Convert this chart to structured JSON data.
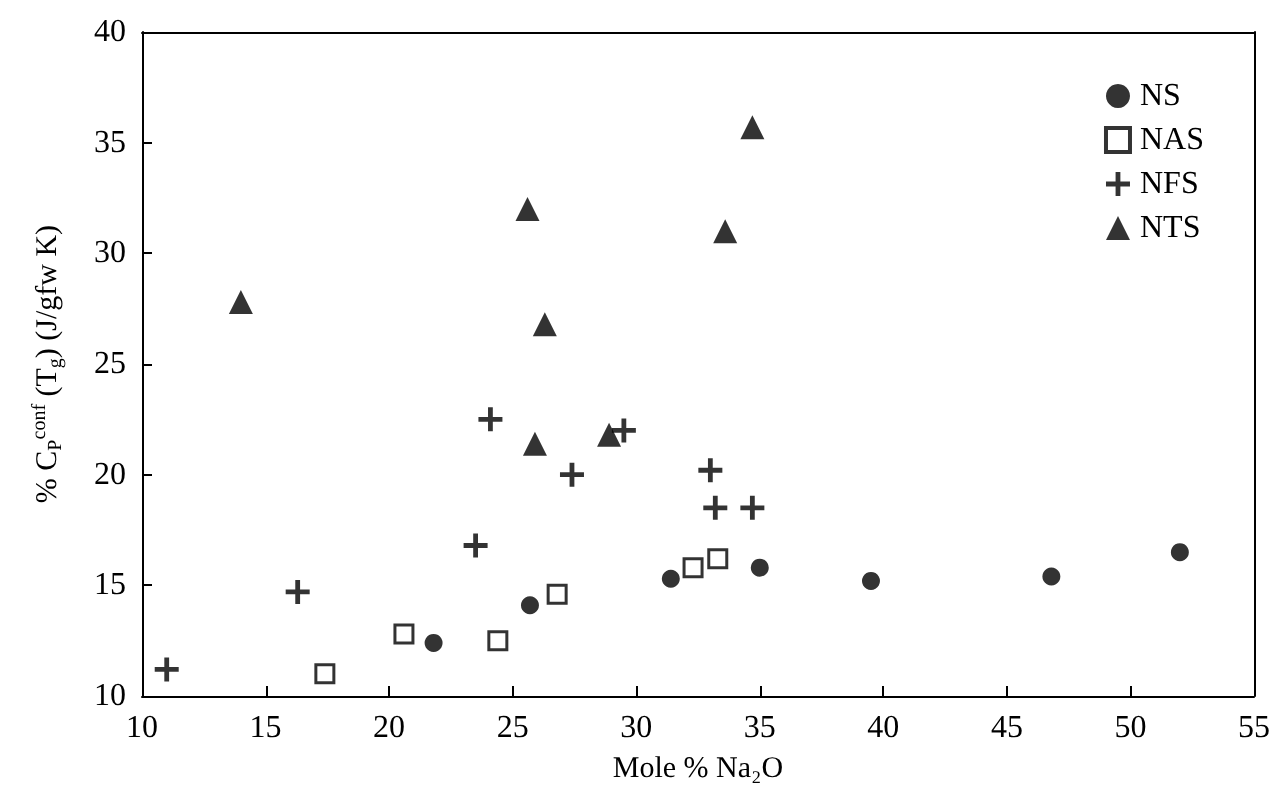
{
  "chart_data": {
    "type": "scatter",
    "xlabel": "Mole % Na₂O",
    "ylabel": "% C$_{P}$$^{conf}$ (T$_{g}$) (J/gfw K)",
    "xlim": [
      10,
      55
    ],
    "xticks": [
      10,
      15,
      20,
      25,
      30,
      35,
      40,
      45,
      50,
      55
    ],
    "ylim": [
      10,
      40
    ],
    "yticks": [
      10,
      15,
      20,
      25,
      30,
      35,
      40
    ],
    "grid": false,
    "legend": "top right",
    "series": [
      {
        "name": "NS",
        "color": "#000000",
        "marker": "circle",
        "x": [
          21.8,
          25.7,
          31.4,
          35,
          39.5,
          46.8,
          52
        ],
        "values": [
          12.4,
          14.1,
          15.3,
          15.8,
          15.2,
          15.4,
          16.5
        ]
      },
      {
        "name": "NAS",
        "color": "#000000",
        "marker": "square",
        "x": [
          17.4,
          20.6,
          24.4,
          26.8,
          32.3,
          33.3
        ],
        "values": [
          11.0,
          12.8,
          12.5,
          14.6,
          15.8,
          16.2
        ]
      },
      {
        "name": "NFS",
        "color": "#000000",
        "marker": "cross",
        "x": [
          11,
          16.3,
          23.5,
          24.1,
          27.4,
          29.5,
          33,
          33.2,
          34.7
        ],
        "values": [
          11.2,
          14.7,
          16.8,
          22.5,
          20,
          22,
          20.2,
          18.5,
          18.5
        ]
      },
      {
        "name": "NTS",
        "color": "#000000",
        "marker": "triangle",
        "x": [
          14,
          25.6,
          26.3,
          25.9,
          28.9,
          33.6,
          34.7
        ],
        "values": [
          27.8,
          32,
          26.8,
          21.4,
          21.8,
          31,
          35.7
        ]
      }
    ]
  }
}
